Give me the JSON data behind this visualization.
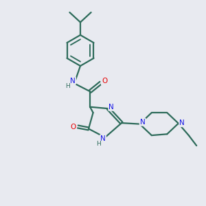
{
  "background_color": "#e8eaf0",
  "bond_color": "#2d6b5a",
  "N_color": "#1414e6",
  "O_color": "#e60000",
  "linewidth": 1.6,
  "figsize": [
    3.0,
    3.0
  ],
  "dpi": 100,
  "xlim": [
    0,
    10
  ],
  "ylim": [
    0,
    10
  ]
}
